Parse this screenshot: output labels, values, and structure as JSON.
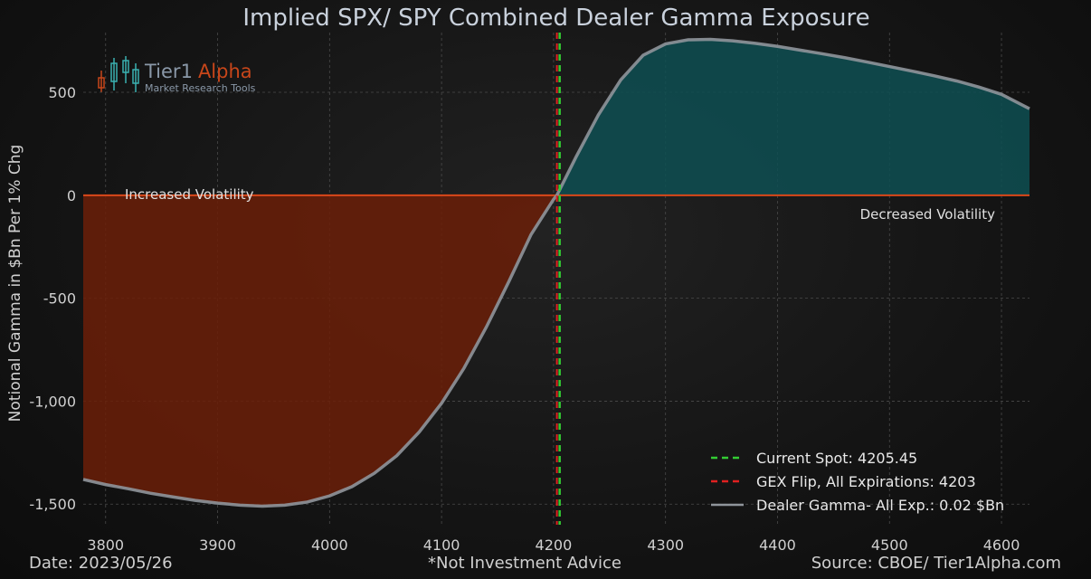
{
  "header": {
    "title": "Implied SPX/ SPY Combined Dealer Gamma Exposure"
  },
  "logo": {
    "brand": "Tier1",
    "brand_accent": "Alpha",
    "tagline": "Market  Research Tools"
  },
  "footer": {
    "date": "Date: 2023/05/26",
    "disclaimer": "*Not Investment Advice",
    "source": "Source: CBOE/ Tier1Alpha.com"
  },
  "annotations": {
    "increased": "Increased Volatility",
    "decreased": "Decreased Volatility"
  },
  "colors": {
    "negative_fill": "#6b1f08",
    "positive_fill": "#0e4f52",
    "zero_line": "#d9481a",
    "spot_line": "#33cc33",
    "flip_line": "#e02020",
    "curve": "#8f959b"
  },
  "chart_data": {
    "type": "area",
    "title": "Implied SPX/ SPY Combined Dealer Gamma Exposure",
    "xlabel": "",
    "ylabel": "Notional Gamma in $Bn Per 1% Chg",
    "xlim": [
      3780,
      4625
    ],
    "ylim": [
      -1600,
      790
    ],
    "x_ticks": [
      3800,
      3900,
      4000,
      4100,
      4200,
      4300,
      4400,
      4500,
      4600
    ],
    "x_tick_labels": [
      "3800",
      "3900",
      "4000",
      "4100",
      "4200",
      "4300",
      "4400",
      "4500",
      "4600"
    ],
    "y_ticks": [
      500,
      0,
      -500,
      -1000,
      -1500
    ],
    "y_tick_labels": [
      "500",
      "0",
      "-500",
      "-1,000",
      "-1,500"
    ],
    "grid": true,
    "legend_position": "bottom-right",
    "series": [
      {
        "name": "Dealer Gamma- All Exp.: 0.02 $Bn",
        "x": [
          3780,
          3800,
          3820,
          3840,
          3860,
          3880,
          3900,
          3920,
          3940,
          3960,
          3980,
          4000,
          4020,
          4040,
          4060,
          4080,
          4100,
          4120,
          4140,
          4160,
          4180,
          4200,
          4203,
          4220,
          4240,
          4260,
          4280,
          4300,
          4320,
          4340,
          4360,
          4380,
          4400,
          4420,
          4440,
          4460,
          4480,
          4500,
          4520,
          4540,
          4560,
          4580,
          4600,
          4625
        ],
        "y": [
          -1380,
          -1405,
          -1425,
          -1447,
          -1465,
          -1482,
          -1495,
          -1505,
          -1510,
          -1505,
          -1490,
          -1460,
          -1415,
          -1350,
          -1265,
          -1150,
          -1010,
          -840,
          -640,
          -420,
          -190,
          -20,
          0,
          185,
          390,
          560,
          680,
          735,
          755,
          757,
          750,
          738,
          723,
          705,
          687,
          668,
          647,
          625,
          603,
          580,
          555,
          525,
          490,
          420
        ]
      }
    ],
    "vlines": [
      {
        "name": "Current Spot: 4205.45",
        "x": 4205.45,
        "style": "dashed"
      },
      {
        "name": "GEX Flip, All Expirations: 4203",
        "x": 4203,
        "style": "dashed"
      }
    ]
  }
}
